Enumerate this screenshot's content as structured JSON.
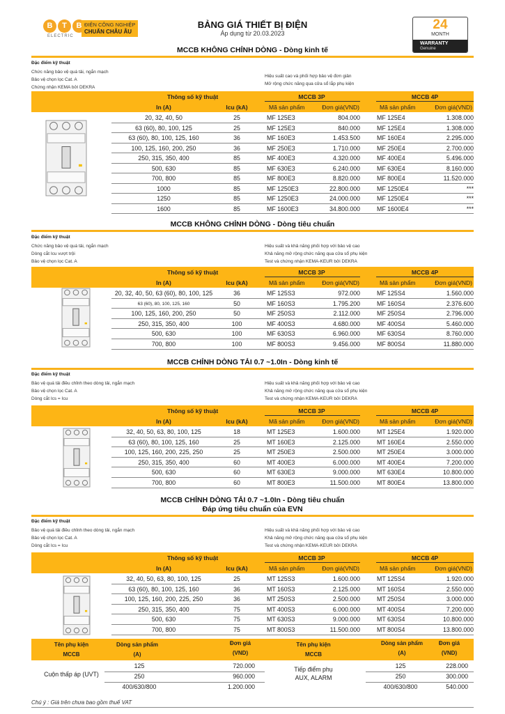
{
  "header": {
    "logo": {
      "letters": [
        "B",
        "T",
        "B"
      ],
      "sub": "ELECTRIC",
      "tag_line1": "ĐIỆN CÔNG NGHIỆP",
      "tag_line2": "CHUẨN CHÂU ÂU"
    },
    "title": "BẢNG GIÁ THIẾT BỊ ĐIỆN",
    "subtitle": "Áp dụng từ 20.03.2023",
    "warranty": {
      "number": "24",
      "unit": "MONTH",
      "label": "WARRANTY",
      "sub": "Genuine"
    }
  },
  "colors": {
    "accent": "#fdb515",
    "logo_orange": "#f5a623"
  },
  "table_headers": {
    "spec": "Thông số kỹ thuật",
    "in": "In (A)",
    "icu": "Icu (kA)",
    "g3": "MCCB 3P",
    "g4": "MCCB 4P",
    "code": "Mã sản phẩm",
    "price": "Đơn giá(VND)"
  },
  "feature_heading": "Đặc điểm kỹ thuật",
  "sections": [
    {
      "title": "MCCB KHÔNG CHỈNH DÒNG - Dòng kinh tế",
      "title2": "",
      "features_left": [
        "Chức năng bảo vệ quá tải, ngắn mạch",
        "Bảo vệ chọn lọc Cat. A",
        "Chứng nhận KEMA bởi DEKRA"
      ],
      "features_right": [
        "Hiệu suất cao và phối hợp bảo vệ đơn giản",
        "Mở rộng chức năng qua cửa sổ lắp phụ kiện"
      ],
      "rows": [
        [
          "20, 32, 40, 50",
          "25",
          "MF 125E3",
          "804.000",
          "MF 125E4",
          "1.308.000"
        ],
        [
          "63 (60), 80, 100, 125",
          "25",
          "MF 125E3",
          "840.000",
          "MF 125E4",
          "1.308.000"
        ],
        [
          "63 (60), 80, 100, 125, 160",
          "36",
          "MF 160E3",
          "1.453.500",
          "MF 160E4",
          "2.295.000"
        ],
        [
          "100, 125, 160, 200, 250",
          "36",
          "MF 250E3",
          "1.710.000",
          "MF 250E4",
          "2.700.000"
        ],
        [
          "250, 315, 350, 400",
          "85",
          "MF 400E3",
          "4.320.000",
          "MF 400E4",
          "5.496.000"
        ],
        [
          "500, 630",
          "85",
          "MF 630E3",
          "6.240.000",
          "MF 630E4",
          "8.160.000"
        ],
        [
          "700, 800",
          "85",
          "MF 800E3",
          "8.820.000",
          "MF 800E4",
          "11.520.000"
        ],
        [
          "1000",
          "85",
          "MF 1250E3",
          "22.800.000",
          "MF 1250E4",
          "***"
        ],
        [
          "1250",
          "85",
          "MF 1250E3",
          "24.000.000",
          "MF 1250E4",
          "***"
        ],
        [
          "1600",
          "85",
          "MF 1600E3",
          "34.800.000",
          "MF 1600E4",
          "***"
        ]
      ]
    },
    {
      "title": "MCCB KHÔNG CHỈNH DÒNG - Dòng tiêu chuẩn",
      "title2": "",
      "features_left": [
        "Chức năng bảo vệ quá tải, ngắn mạch",
        "Dòng cắt Icu vượt trội",
        "Bảo vệ chọn lọc Cat. A"
      ],
      "features_right": [
        "Hiệu suất và khả năng phối hợp với bảo vệ cao",
        "Khả năng mở rộng chức năng qua cửa sổ phụ kiện",
        "Test và chứng nhận KEMA-KEUR bởi DEKRA"
      ],
      "rows": [
        [
          "20, 32, 40, 50, 63 (60), 80, 100, 125",
          "36",
          "MF 125S3",
          "972.000",
          "MF 125S4",
          "1.560.000"
        ],
        [
          "63 (60), 80, 100, 125, 160",
          "50",
          "MF 160S3",
          "1.795.200",
          "MF 160S4",
          "2.376.600"
        ],
        [
          "100, 125, 160, 200, 250",
          "50",
          "MF 250S3",
          "2.112.000",
          "MF 250S4",
          "2.796.000"
        ],
        [
          "250, 315, 350, 400",
          "100",
          "MF 400S3",
          "4.680.000",
          "MF 400S4",
          "5.460.000"
        ],
        [
          "500, 630",
          "100",
          "MF 630S3",
          "6.960.000",
          "MF 630S4",
          "8.760.000"
        ],
        [
          "700, 800",
          "100",
          "MF 800S3",
          "9.456.000",
          "MF 800S4",
          "11.880.000"
        ]
      ]
    },
    {
      "title": "MCCB CHỈNH DÒNG TẢI 0.7 ~1.0In - Dòng kinh tế",
      "title2": "",
      "features_left": [
        "Bảo vệ quá tải điều chỉnh theo dòng tải, ngắn mạch",
        "Bảo vệ chọn lọc Cat. A",
        "Dòng cắt Ics = Icu"
      ],
      "features_right": [
        "Hiệu suất và khả năng phối hợp với bảo vệ cao",
        "Khả năng mở rộng chức năng qua cửa sổ phụ kiện",
        "Test và chứng nhận KEMA-KEUR bởi DEKRA"
      ],
      "rows": [
        [
          "32, 40, 50, 63, 80, 100, 125",
          "18",
          "MT 125E3",
          "1.600.000",
          "MT 125E4",
          "1.920.000"
        ],
        [
          "63 (60), 80, 100, 125, 160",
          "25",
          "MT 160E3",
          "2.125.000",
          "MT 160E4",
          "2.550.000"
        ],
        [
          "100, 125, 160, 200, 225, 250",
          "25",
          "MT 250E3",
          "2.500.000",
          "MT 250E4",
          "3.000.000"
        ],
        [
          "250, 315, 350, 400",
          "60",
          "MT 400E3",
          "6.000.000",
          "MT 400E4",
          "7.200.000"
        ],
        [
          "500, 630",
          "60",
          "MT 630E3",
          "9.000.000",
          "MT 630E4",
          "10.800.000"
        ],
        [
          "700, 800",
          "60",
          "MT 800E3",
          "11.500.000",
          "MT 800E4",
          "13.800.000"
        ]
      ]
    },
    {
      "title": "MCCB CHỈNH DÒNG TẢI 0.7 ~1.0In - Dòng tiêu chuẩn",
      "title2": "Đáp ứng tiêu chuẩn của EVN",
      "features_left": [
        "Bảo vệ quá tải điều chỉnh theo dòng tải, ngắn mạch",
        "Bảo vệ chọn lọc Cat. A",
        "Dòng cắt Ics = Icu"
      ],
      "features_right": [
        "Hiệu suất và khả năng phối hợp với bảo vệ cao",
        "Khả năng mở rộng chức năng qua cửa sổ phụ kiện",
        "Test và chứng nhận KEMA-KEUR bởi DEKRA"
      ],
      "rows": [
        [
          "32, 40, 50, 63, 80, 100, 125",
          "25",
          "MT 125S3",
          "1.600.000",
          "MT 125S4",
          "1.920.000"
        ],
        [
          "63 (60), 80, 100, 125, 160",
          "36",
          "MT 160S3",
          "2.125.000",
          "MT 160S4",
          "2.550.000"
        ],
        [
          "100, 125, 160, 200, 225, 250",
          "36",
          "MT 250S3",
          "2.500.000",
          "MT 250S4",
          "3.000.000"
        ],
        [
          "250, 315, 350, 400",
          "75",
          "MT 400S3",
          "6.000.000",
          "MT 400S4",
          "7.200.000"
        ],
        [
          "500, 630",
          "75",
          "MT 630S3",
          "9.000.000",
          "MT 630S4",
          "10.800.000"
        ],
        [
          "700, 800",
          "75",
          "MT 800S3",
          "11.500.000",
          "MT 800S4",
          "13.800.000"
        ]
      ]
    }
  ],
  "accessories": {
    "headers": {
      "name1": "Tên phụ kiện",
      "name2": "MCCB",
      "line1": "Dòng sản phẩm",
      "line2": "(A)",
      "price1": "Đơn giá",
      "price2": "(VND)"
    },
    "groups": [
      {
        "name": "Cuộn thấp áp (UVT)",
        "name2": "",
        "rows": [
          [
            "125",
            "720.000"
          ],
          [
            "250",
            "960.000"
          ],
          [
            "400/630/800",
            "1.200.000"
          ]
        ]
      },
      {
        "name": "Tiếp điểm phụ",
        "name2": "AUX, ALARM",
        "rows": [
          [
            "125",
            "228.000"
          ],
          [
            "250",
            "300.000"
          ],
          [
            "400/630/800",
            "540.000"
          ]
        ]
      }
    ]
  },
  "note": "Chú ý : Giá trên chưa bao gồm thuế VAT"
}
